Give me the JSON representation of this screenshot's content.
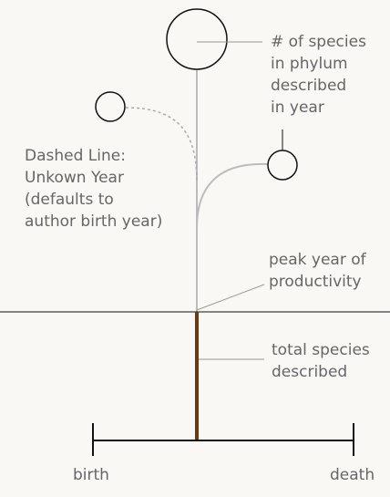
{
  "legend": {
    "species_per_phylum": "# of species\nin phylum\ndescribed\nin year",
    "dashed_line": "Dashed Line:\nUnkown Year\n(defaults to\nauthor birth year)",
    "peak_year": "peak year of\nproductivity",
    "total_species": "total species\ndescribed",
    "birth": "birth",
    "death": "death"
  },
  "colors": {
    "background": "#f9f8f5",
    "text": "#666666",
    "stem": "#bbbbbb",
    "trunk": "#6b3a10",
    "ink": "#111111",
    "leader": "#999999"
  }
}
